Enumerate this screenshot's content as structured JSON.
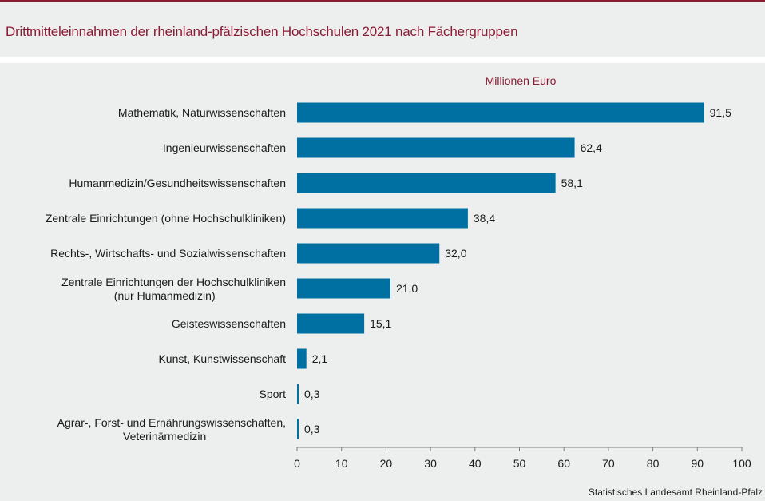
{
  "header": {
    "title": "Drittmitteleinnahmen der rheinland-pfälzischen Hochschulen 2021 nach Fächergruppen"
  },
  "colors": {
    "accent": "#8b1c35",
    "bar": "#0070a3",
    "background": "#edeeee"
  },
  "chart_data": {
    "type": "bar",
    "orientation": "horizontal",
    "title": "Drittmitteleinnahmen der rheinland-pfälzischen Hochschulen 2021 nach Fächergruppen",
    "unit_label": "Millionen Euro",
    "xlabel": "",
    "ylabel": "",
    "categories": [
      [
        "Mathematik, Naturwissenschaften"
      ],
      [
        "Ingenieurwissenschaften"
      ],
      [
        "Humanmedizin/Gesundheitswissenschaften"
      ],
      [
        "Zentrale Einrichtungen (ohne Hochschulkliniken)"
      ],
      [
        "Rechts-,  Wirtschafts- und Sozialwissenschaften"
      ],
      [
        "Zentrale Einrichtungen der Hochschulkliniken",
        "(nur Humanmedizin)"
      ],
      [
        "Geisteswissenschaften"
      ],
      [
        "Kunst, Kunstwissenschaft"
      ],
      [
        "Sport"
      ],
      [
        "Agrar-, Forst- und Ernährungswissenschaften,",
        "Veterinärmedizin"
      ]
    ],
    "values": [
      91.5,
      62.4,
      58.1,
      38.4,
      32.0,
      21.0,
      15.1,
      2.1,
      0.3,
      0.3
    ],
    "value_labels": [
      "91,5",
      "62,4",
      "58,1",
      "38,4",
      "32,0",
      "21,0",
      "15,1",
      "2,1",
      "0,3",
      "0,3"
    ],
    "xlim": [
      0,
      100
    ],
    "xticks": [
      0,
      10,
      20,
      30,
      40,
      50,
      60,
      70,
      80,
      90,
      100
    ],
    "grid": false,
    "legend": "none"
  },
  "footer": {
    "source": "Statistisches Landesamt  Rheinland-Pfalz"
  }
}
